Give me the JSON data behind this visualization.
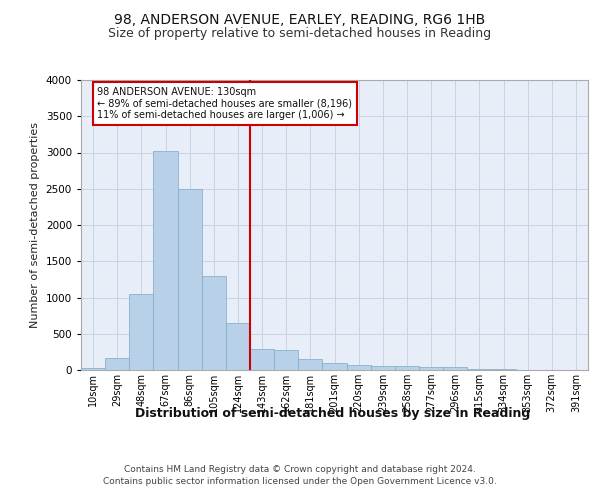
{
  "title_line1": "98, ANDERSON AVENUE, EARLEY, READING, RG6 1HB",
  "title_line2": "Size of property relative to semi-detached houses in Reading",
  "xlabel": "Distribution of semi-detached houses by size in Reading",
  "ylabel": "Number of semi-detached properties",
  "footer_line1": "Contains HM Land Registry data © Crown copyright and database right 2024.",
  "footer_line2": "Contains public sector information licensed under the Open Government Licence v3.0.",
  "annotation_title": "98 ANDERSON AVENUE: 130sqm",
  "annotation_line1": "← 89% of semi-detached houses are smaller (8,196)",
  "annotation_line2": "11% of semi-detached houses are larger (1,006) →",
  "bar_color": "#b8d0e8",
  "bar_edge_color": "#7aaac8",
  "grid_color": "#c8d4e4",
  "background_color": "#e8eef8",
  "redline_color": "#cc0000",
  "annotation_box_color": "#cc0000",
  "bin_labels": [
    "10sqm",
    "29sqm",
    "48sqm",
    "67sqm",
    "86sqm",
    "105sqm",
    "124sqm",
    "143sqm",
    "162sqm",
    "181sqm",
    "201sqm",
    "220sqm",
    "239sqm",
    "258sqm",
    "277sqm",
    "296sqm",
    "315sqm",
    "334sqm",
    "353sqm",
    "372sqm",
    "391sqm"
  ],
  "bar_heights": [
    30,
    170,
    1050,
    3020,
    2500,
    1300,
    650,
    290,
    280,
    150,
    90,
    75,
    60,
    55,
    45,
    40,
    10,
    10,
    5,
    5,
    3
  ],
  "redline_bin": 6,
  "ylim": [
    0,
    4000
  ],
  "yticks": [
    0,
    500,
    1000,
    1500,
    2000,
    2500,
    3000,
    3500,
    4000
  ],
  "title1_fontsize": 10,
  "title2_fontsize": 9,
  "footer_fontsize": 6.5,
  "ylabel_fontsize": 8,
  "xlabel_fontsize": 9,
  "tick_fontsize": 7
}
